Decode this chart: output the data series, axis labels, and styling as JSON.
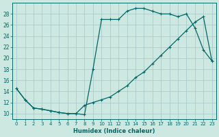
{
  "xlabel": "Humidex (Indice chaleur)",
  "bg_color": "#cce8e0",
  "grid_color": "#aacccc",
  "line_color": "#006666",
  "xlim": [
    -0.5,
    23.5
  ],
  "ylim": [
    9,
    30
  ],
  "xticks": [
    0,
    1,
    2,
    3,
    4,
    5,
    6,
    7,
    8,
    9,
    10,
    11,
    12,
    13,
    14,
    15,
    16,
    17,
    18,
    19,
    20,
    21,
    22,
    23
  ],
  "yticks": [
    10,
    12,
    14,
    16,
    18,
    20,
    22,
    24,
    26,
    28
  ],
  "series1_x": [
    0,
    1,
    2,
    3,
    4,
    5,
    6,
    7,
    8,
    9,
    10,
    11,
    12,
    13,
    14,
    15,
    16,
    17,
    18,
    19,
    20,
    21,
    22,
    23
  ],
  "series1_y": [
    14.5,
    12.5,
    11.0,
    10.8,
    10.5,
    10.2,
    10.0,
    10.0,
    9.8,
    18.0,
    27.0,
    27.0,
    27.0,
    28.5,
    29.0,
    29.0,
    28.5,
    28.0,
    28.0,
    27.5,
    28.0,
    25.5,
    21.5,
    19.5
  ],
  "series2_x": [
    0,
    1,
    2,
    3,
    4,
    5,
    6,
    7,
    8,
    9,
    10,
    11,
    12,
    13,
    14,
    15,
    16,
    17,
    18,
    19,
    20,
    21,
    22,
    23
  ],
  "series2_y": [
    14.5,
    12.5,
    11.0,
    10.8,
    10.5,
    10.2,
    10.0,
    10.0,
    11.5,
    12.0,
    12.5,
    13.0,
    14.0,
    15.0,
    16.5,
    17.5,
    19.0,
    20.5,
    22.0,
    23.5,
    25.0,
    26.5,
    27.5,
    19.5
  ]
}
